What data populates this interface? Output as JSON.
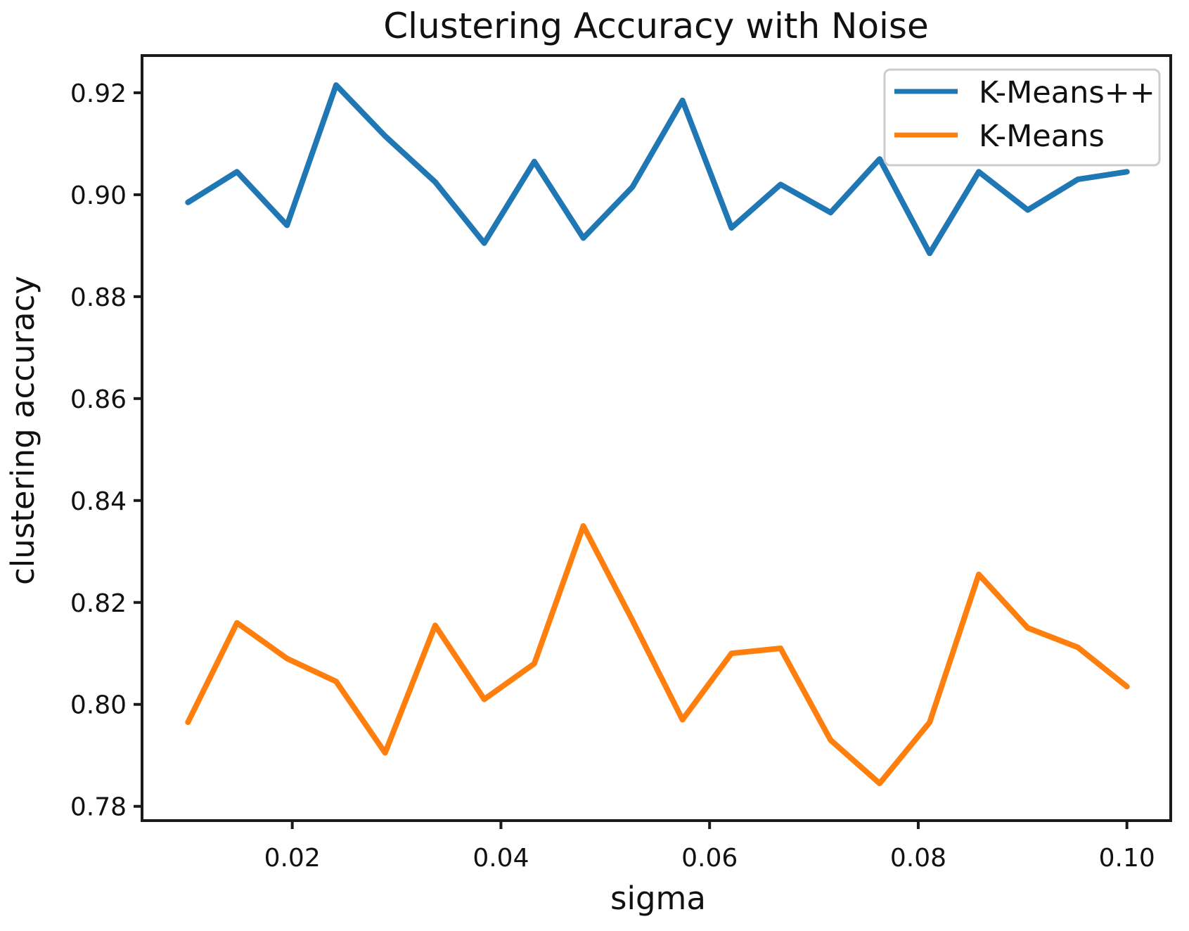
{
  "figure": {
    "background": "#ffffff",
    "text_color": "#111111",
    "spine_color": "#1a1a1a"
  },
  "chart_data": {
    "type": "line",
    "title": "Clustering Accuracy with Noise",
    "xlabel": "sigma",
    "ylabel": "clustering accuracy",
    "xlim": [
      0.0056,
      0.1042
    ],
    "ylim": [
      0.7772,
      0.9273
    ],
    "grid": false,
    "legend_position": "upper right",
    "x": [
      0.01,
      0.0147,
      0.0195,
      0.0242,
      0.0289,
      0.0337,
      0.0384,
      0.0432,
      0.0479,
      0.0526,
      0.0574,
      0.0621,
      0.0668,
      0.0716,
      0.0763,
      0.0811,
      0.0858,
      0.0905,
      0.0953,
      0.1
    ],
    "series": [
      {
        "name": "K-Means++",
        "color": "#1f77b4",
        "values": [
          0.8985,
          0.9045,
          0.894,
          0.9215,
          0.9115,
          0.9025,
          0.8905,
          0.9065,
          0.8915,
          0.9015,
          0.9185,
          0.8935,
          0.902,
          0.8965,
          0.907,
          0.8885,
          0.9045,
          0.897,
          0.903,
          0.9045
        ]
      },
      {
        "name": "K-Means",
        "color": "#ff7f0e",
        "values": [
          0.7965,
          0.816,
          0.809,
          0.8045,
          0.7905,
          0.8155,
          0.801,
          0.808,
          0.835,
          0.8165,
          0.797,
          0.81,
          0.811,
          0.793,
          0.7845,
          0.7965,
          0.8255,
          0.815,
          0.8112,
          0.8035
        ]
      }
    ],
    "xticks": [
      {
        "v": 0.02,
        "label": "0.02"
      },
      {
        "v": 0.04,
        "label": "0.04"
      },
      {
        "v": 0.06,
        "label": "0.06"
      },
      {
        "v": 0.08,
        "label": "0.08"
      },
      {
        "v": 0.1,
        "label": "0.10"
      }
    ],
    "yticks": [
      {
        "v": 0.78,
        "label": "0.78"
      },
      {
        "v": 0.8,
        "label": "0.80"
      },
      {
        "v": 0.82,
        "label": "0.82"
      },
      {
        "v": 0.84,
        "label": "0.84"
      },
      {
        "v": 0.86,
        "label": "0.86"
      },
      {
        "v": 0.88,
        "label": "0.88"
      },
      {
        "v": 0.9,
        "label": "0.90"
      },
      {
        "v": 0.92,
        "label": "0.92"
      }
    ],
    "legend": [
      "K-Means++",
      "K-Means"
    ]
  }
}
